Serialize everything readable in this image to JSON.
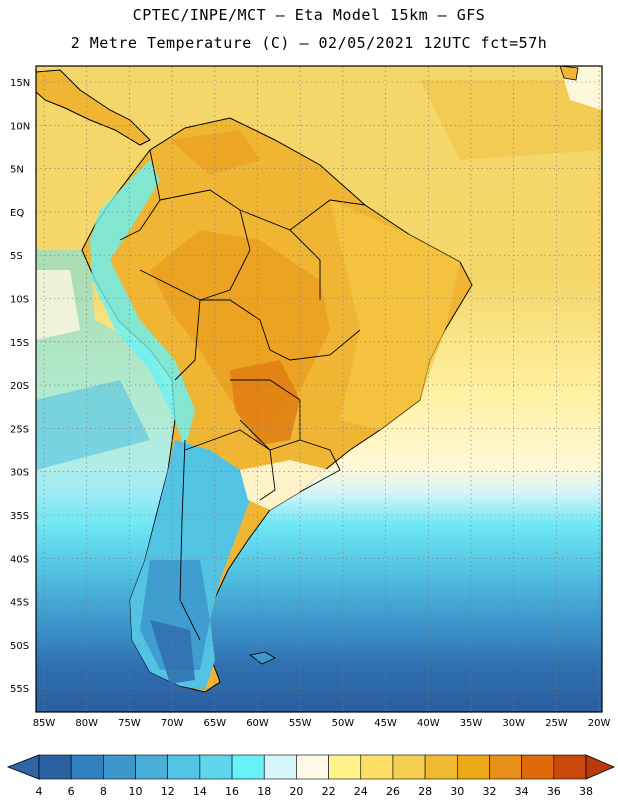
{
  "header": {
    "line1": "CPTEC/INPE/MCT –  Eta Model 15km – GFS",
    "line2": "2 Metre Temperature (C) – 02/05/2021 12UTC fct=57h"
  },
  "map": {
    "lat_labels": [
      "15N",
      "10N",
      "5N",
      "EQ",
      "5S",
      "10S",
      "15S",
      "20S",
      "25S",
      "30S",
      "35S",
      "40S",
      "45S",
      "50S",
      "55S"
    ],
    "lon_labels": [
      "85W",
      "80W",
      "75W",
      "70W",
      "65W",
      "60W",
      "55W",
      "50W",
      "45W",
      "40W",
      "35W",
      "30W",
      "25W",
      "20W"
    ]
  },
  "colorbar": {
    "labels": [
      "4",
      "6",
      "8",
      "10",
      "12",
      "14",
      "16",
      "18",
      "20",
      "22",
      "24",
      "26",
      "28",
      "30",
      "32",
      "34",
      "36",
      "38"
    ],
    "colors": [
      "#2a5fa0",
      "#3380c0",
      "#3d97cc",
      "#49aed8",
      "#53c3e3",
      "#5fd6ec",
      "#66f2f8",
      "#d6f6fb",
      "#fff8e6",
      "#fff28a",
      "#ffe066",
      "#f5cf4f",
      "#f0bb30",
      "#eca815",
      "#e8901a",
      "#e06a0a",
      "#c9480a"
    ],
    "left_color": "#2f66a8",
    "right_color": "#b83a0a"
  }
}
